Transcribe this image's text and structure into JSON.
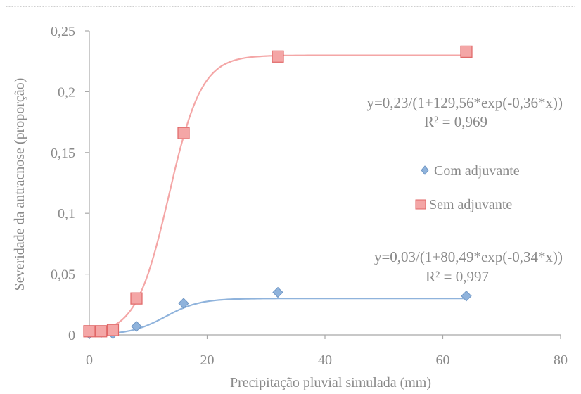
{
  "chart_data": {
    "type": "scatter",
    "title": "",
    "xlabel": "Precipitação pluvial simulada (mm)",
    "ylabel": "Severidade da antracnose (proporção)",
    "xlim": [
      0,
      80
    ],
    "ylim": [
      0,
      0.25
    ],
    "grid": false,
    "legend_position": "right",
    "x_ticks": [
      {
        "value": 0,
        "label": "0"
      },
      {
        "value": 20,
        "label": "20"
      },
      {
        "value": 40,
        "label": "40"
      },
      {
        "value": 60,
        "label": "60"
      },
      {
        "value": 80,
        "label": "80"
      }
    ],
    "y_ticks": [
      {
        "value": 0,
        "label": "0"
      },
      {
        "value": 0.05,
        "label": "0,05"
      },
      {
        "value": 0.1,
        "label": "0,1"
      },
      {
        "value": 0.15,
        "label": "0,15"
      },
      {
        "value": 0.2,
        "label": "0,2"
      },
      {
        "value": 0.25,
        "label": "0,25"
      }
    ],
    "series": [
      {
        "name": "Com adjuvante",
        "marker": "diamond",
        "color": "#8fb3dc",
        "stroke": "#6f96c4",
        "x": [
          0,
          2,
          4,
          8,
          16,
          32,
          64
        ],
        "y": [
          0.001,
          0.002,
          0.001,
          0.007,
          0.026,
          0.035,
          0.032
        ],
        "fit": {
          "equation": "y=0,03/(1+80,49*exp(-0,34*x))",
          "r2": "R² = 0,997",
          "a": 0.03,
          "b": 80.49,
          "c": 0.34
        }
      },
      {
        "name": "Sem adjuvante",
        "marker": "square",
        "color": "#f4a6a6",
        "stroke": "#e06666",
        "x": [
          0,
          2,
          4,
          8,
          16,
          32,
          64
        ],
        "y": [
          0.003,
          0.003,
          0.004,
          0.03,
          0.166,
          0.229,
          0.233
        ],
        "fit": {
          "equation": "y=0,23/(1+129,56*exp(-0,36*x))",
          "r2": "R² = 0,969",
          "a": 0.23,
          "b": 129.56,
          "c": 0.36
        }
      }
    ]
  }
}
